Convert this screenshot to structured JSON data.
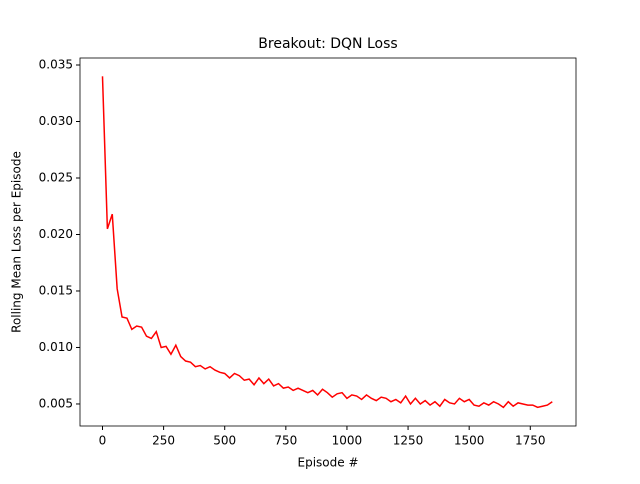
{
  "chart_data": {
    "type": "line",
    "title": "Breakout: DQN Loss",
    "x_label": "Episode #",
    "y_label": "Rolling Mean Loss per Episode",
    "x": [
      0,
      20,
      40,
      60,
      80,
      100,
      120,
      140,
      160,
      180,
      200,
      220,
      240,
      260,
      280,
      300,
      320,
      340,
      360,
      380,
      400,
      420,
      440,
      460,
      480,
      500,
      520,
      540,
      560,
      580,
      600,
      620,
      640,
      660,
      680,
      700,
      720,
      740,
      760,
      780,
      800,
      820,
      840,
      860,
      880,
      900,
      920,
      940,
      960,
      980,
      1000,
      1020,
      1040,
      1060,
      1080,
      1100,
      1120,
      1140,
      1160,
      1180,
      1200,
      1220,
      1240,
      1260,
      1280,
      1300,
      1320,
      1340,
      1360,
      1380,
      1400,
      1420,
      1440,
      1460,
      1480,
      1500,
      1520,
      1540,
      1560,
      1580,
      1600,
      1620,
      1640,
      1660,
      1680,
      1700,
      1720,
      1740,
      1760,
      1780,
      1800,
      1820,
      1840
    ],
    "series": [
      {
        "color": "#ff0000",
        "values": [
          0.034,
          0.0205,
          0.0218,
          0.0152,
          0.0127,
          0.0126,
          0.0116,
          0.0119,
          0.0118,
          0.011,
          0.0108,
          0.0114,
          0.01,
          0.0101,
          0.0094,
          0.0102,
          0.0092,
          0.0088,
          0.0087,
          0.0083,
          0.0084,
          0.0081,
          0.0083,
          0.008,
          0.0078,
          0.0077,
          0.0073,
          0.0077,
          0.0075,
          0.0071,
          0.0072,
          0.0067,
          0.0073,
          0.0068,
          0.0072,
          0.0066,
          0.0068,
          0.0064,
          0.0065,
          0.0062,
          0.0064,
          0.0062,
          0.006,
          0.0062,
          0.0058,
          0.0063,
          0.006,
          0.0056,
          0.0059,
          0.006,
          0.0055,
          0.0058,
          0.0057,
          0.0054,
          0.0058,
          0.0055,
          0.0053,
          0.0056,
          0.0055,
          0.0052,
          0.0054,
          0.0051,
          0.0057,
          0.005,
          0.0055,
          0.005,
          0.0053,
          0.0049,
          0.0052,
          0.0048,
          0.0054,
          0.0051,
          0.005,
          0.0055,
          0.0052,
          0.0054,
          0.0049,
          0.0048,
          0.0051,
          0.0049,
          0.0052,
          0.005,
          0.0047,
          0.0052,
          0.0048,
          0.0051,
          0.005,
          0.0049,
          0.0049,
          0.0047,
          0.0048,
          0.0049,
          0.0052
        ]
      }
    ],
    "xlim": [
      -92,
      1937
    ],
    "ylim": [
      0.00305,
      0.03562
    ],
    "xticks": [
      0,
      250,
      500,
      750,
      1000,
      1250,
      1500,
      1750
    ],
    "yticks": [
      0.005,
      {
        "value": 0.01,
        "label": "0.010"
      },
      0.015,
      {
        "value": 0.02,
        "label": "0.020"
      },
      0.025,
      {
        "value": 0.03,
        "label": "0.030"
      },
      0.035
    ]
  }
}
